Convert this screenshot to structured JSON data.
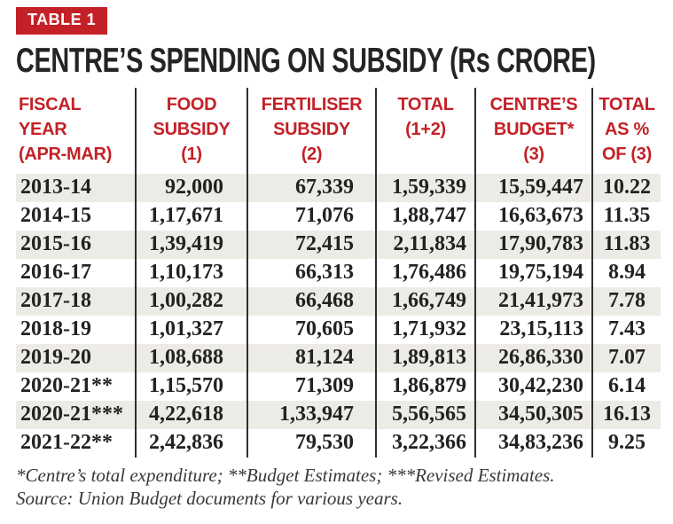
{
  "badge": {
    "label": "TABLE 1"
  },
  "title": "CENTRE’S SPENDING ON SUBSIDY (Rs CRORE)",
  "colors": {
    "accent_red": "#c32127",
    "row_shade": "#edebe5",
    "column_rule": "#2e2e2e",
    "title_text": "#242424",
    "footnote_text": "#383838"
  },
  "table": {
    "columns": [
      {
        "id": "fiscal-year",
        "lines": [
          "FISCAL",
          "YEAR",
          "(APR-MAR)"
        ]
      },
      {
        "id": "food-subsidy",
        "lines": [
          "FOOD",
          "SUBSIDY",
          "(1)"
        ]
      },
      {
        "id": "fertiliser-subsidy",
        "lines": [
          "FERTILISER",
          "SUBSIDY",
          "(2)"
        ]
      },
      {
        "id": "total",
        "lines": [
          "TOTAL",
          "(1+2)"
        ]
      },
      {
        "id": "centres-budget",
        "lines": [
          "CENTRE’S",
          "BUDGET*",
          "(3)"
        ]
      },
      {
        "id": "total-as-pct",
        "lines": [
          "TOTAL",
          "AS %",
          "OF (3)"
        ]
      }
    ]
  },
  "chart_data": {
    "type": "table",
    "title": "CENTRE’S SPENDING ON SUBSIDY (Rs CRORE)",
    "columns": [
      "FISCAL YEAR (APR-MAR)",
      "FOOD SUBSIDY (1)",
      "FERTILISER SUBSIDY (2)",
      "TOTAL (1+2)",
      "CENTRE’S BUDGET* (3)",
      "TOTAL AS % OF (3)"
    ],
    "rows": [
      [
        "2013-14",
        "92,000",
        "67,339",
        "1,59,339",
        "15,59,447",
        "10.22"
      ],
      [
        "2014-15",
        "1,17,671",
        "71,076",
        "1,88,747",
        "16,63,673",
        "11.35"
      ],
      [
        "2015-16",
        "1,39,419",
        "72,415",
        "2,11,834",
        "17,90,783",
        "11.83"
      ],
      [
        "2016-17",
        "1,10,173",
        "66,313",
        "1,76,486",
        "19,75,194",
        "8.94"
      ],
      [
        "2017-18",
        "1,00,282",
        "66,468",
        "1,66,749",
        "21,41,973",
        "7.78"
      ],
      [
        "2018-19",
        "1,01,327",
        "70,605",
        "1,71,932",
        "23,15,113",
        "7.43"
      ],
      [
        "2019-20",
        "1,08,688",
        "81,124",
        "1,89,813",
        "26,86,330",
        "7.07"
      ],
      [
        "2020-21**",
        "1,15,570",
        "71,309",
        "1,86,879",
        "30,42,230",
        "6.14"
      ],
      [
        "2020-21***",
        "4,22,618",
        "1,33,947",
        "5,56,565",
        "34,50,305",
        "16.13"
      ],
      [
        "2021-22**",
        "2,42,836",
        "79,530",
        "3,22,366",
        "34,83,236",
        "9.25"
      ]
    ]
  },
  "footnotes": {
    "note": "*Centre’s total expenditure; **Budget Estimates; ***Revised Estimates.",
    "source": "Source: Union Budget documents for various years."
  }
}
